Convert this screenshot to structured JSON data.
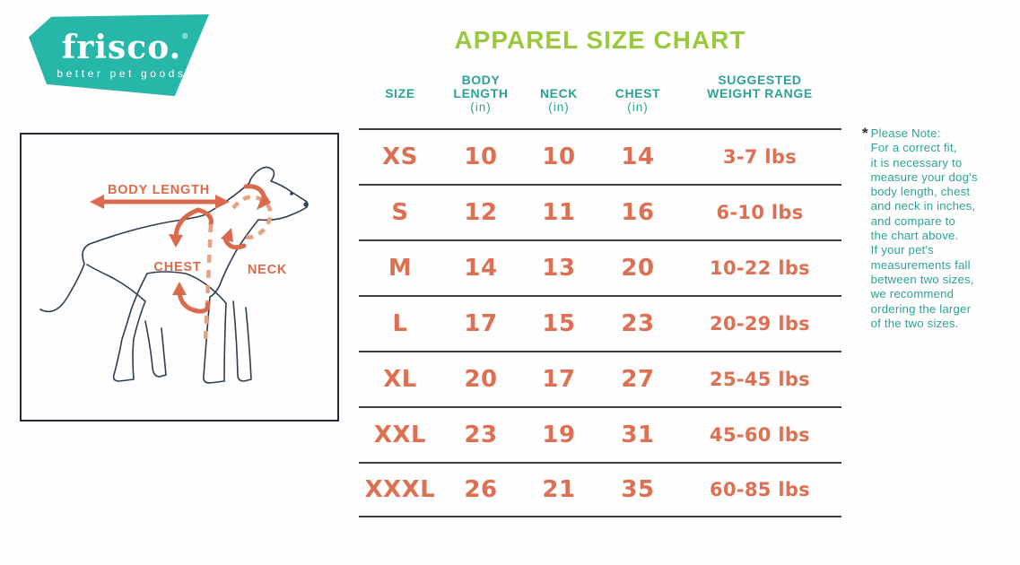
{
  "logo": {
    "brand": "frisco.",
    "registered_mark": "®",
    "tagline": "better pet goods",
    "bg_color": "#26b7a8"
  },
  "title": "APPAREL SIZE CHART",
  "diagram": {
    "body_length_label": "BODY LENGTH",
    "chest_label": "CHEST",
    "neck_label": "NECK"
  },
  "table": {
    "headers": [
      {
        "top": "",
        "main": "SIZE",
        "unit": ""
      },
      {
        "top": "BODY",
        "main": "LENGTH",
        "unit": "(in)"
      },
      {
        "top": "",
        "main": "NECK",
        "unit": "(in)"
      },
      {
        "top": "",
        "main": "CHEST",
        "unit": "(in)"
      },
      {
        "top": "SUGGESTED",
        "main": "WEIGHT RANGE",
        "unit": ""
      }
    ],
    "rows": [
      {
        "size": "XS",
        "body_length": "10",
        "neck": "10",
        "chest": "14",
        "weight": "3-7 lbs"
      },
      {
        "size": "S",
        "body_length": "12",
        "neck": "11",
        "chest": "16",
        "weight": "6-10 lbs"
      },
      {
        "size": "M",
        "body_length": "14",
        "neck": "13",
        "chest": "20",
        "weight": "10-22 lbs"
      },
      {
        "size": "L",
        "body_length": "17",
        "neck": "15",
        "chest": "23",
        "weight": "20-29 lbs"
      },
      {
        "size": "XL",
        "body_length": "20",
        "neck": "17",
        "chest": "27",
        "weight": "25-45 lbs"
      },
      {
        "size": "XXL",
        "body_length": "23",
        "neck": "19",
        "chest": "31",
        "weight": "45-60 lbs"
      },
      {
        "size": "XXXL",
        "body_length": "26",
        "neck": "21",
        "chest": "35",
        "weight": "60-85 lbs"
      }
    ]
  },
  "note": {
    "marker": "*",
    "lines": [
      "Please Note:",
      "For a correct fit,",
      "it is necessary to",
      "measure your dog's",
      "body length, chest",
      "and neck in inches,",
      "and compare to",
      "the chart above.",
      "If your pet's",
      "measurements fall",
      "between two sizes,",
      "we recommend",
      "ordering the larger",
      "of the two sizes."
    ]
  },
  "colors": {
    "teal": "#26b7a8",
    "teal_text": "#2aa396",
    "green": "#99c93c",
    "orange": "#dd7052",
    "orange_light": "#e8a081",
    "table_line": "#3e3e3e",
    "dog_line": "#2d3e50"
  }
}
